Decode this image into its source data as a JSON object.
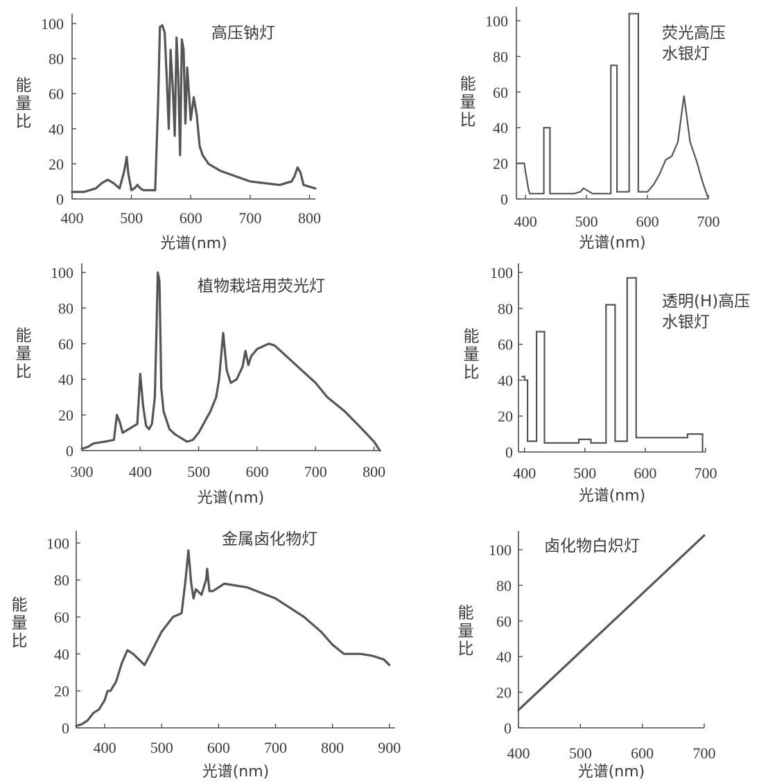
{
  "chart_data": [
    {
      "id": "hps",
      "type": "line",
      "title_lines": [
        "高压钠灯"
      ],
      "ylabel": "能量比",
      "xlabel": "光谱(nm)",
      "xlim": [
        400,
        810
      ],
      "ylim": [
        0,
        100
      ],
      "xticks": [
        400,
        500,
        600,
        700,
        800
      ],
      "yticks": [
        0,
        20,
        40,
        60,
        80,
        100
      ],
      "series": [
        {
          "x": [
            400,
            420,
            440,
            450,
            460,
            470,
            480,
            488,
            492,
            495,
            500,
            505,
            510,
            515,
            520,
            530,
            540,
            545,
            548,
            552,
            556,
            560,
            563,
            566,
            570,
            573,
            576,
            579,
            582,
            585,
            588,
            591,
            594,
            597,
            600,
            605,
            610,
            615,
            620,
            630,
            650,
            700,
            750,
            770,
            775,
            780,
            785,
            790,
            800,
            810
          ],
          "y": [
            4,
            4,
            6,
            9,
            11,
            9,
            6,
            16,
            24,
            14,
            5,
            6,
            8,
            6,
            5,
            5,
            5,
            55,
            98,
            99,
            95,
            65,
            40,
            85,
            62,
            36,
            92,
            70,
            25,
            91,
            85,
            43,
            75,
            60,
            45,
            58,
            48,
            30,
            25,
            20,
            16,
            10,
            8,
            10,
            13,
            18,
            15,
            8,
            7,
            6
          ]
        }
      ]
    },
    {
      "id": "mercury-fluor",
      "type": "line",
      "title_lines": [
        "荧光高压",
        "水银灯"
      ],
      "ylabel": "能量比",
      "xlabel": "光谱(nm)",
      "xlim": [
        385,
        700
      ],
      "ylim": [
        0,
        100
      ],
      "xticks": [
        400,
        500,
        600,
        700
      ],
      "yticks": [
        0,
        20,
        40,
        60,
        80,
        100
      ],
      "series": [
        {
          "x": [
            385,
            398,
            400,
            405,
            407,
            430,
            430,
            440,
            440,
            480,
            490,
            495,
            500,
            505,
            510,
            520,
            540,
            540,
            550,
            550,
            560,
            570,
            570,
            585,
            585,
            600,
            610,
            620,
            630,
            640,
            650,
            655,
            660,
            665,
            670,
            680,
            690,
            700
          ],
          "y": [
            20,
            20,
            15,
            5,
            3,
            3,
            40,
            40,
            3,
            3,
            4,
            6,
            5,
            4,
            3,
            3,
            3,
            75,
            75,
            4,
            4,
            4,
            104,
            104,
            4,
            4,
            8,
            14,
            22,
            24,
            32,
            45,
            58,
            45,
            32,
            22,
            10,
            0
          ]
        }
      ]
    },
    {
      "id": "plant-fluor",
      "type": "line",
      "title_lines": [
        "植物栽培用荧光灯"
      ],
      "ylabel": "能量比",
      "xlabel": "光谱(nm)",
      "xlim": [
        300,
        810
      ],
      "ylim": [
        0,
        100
      ],
      "xticks": [
        300,
        400,
        500,
        600,
        700,
        800
      ],
      "yticks": [
        0,
        20,
        40,
        60,
        80,
        100
      ],
      "series": [
        {
          "x": [
            300,
            310,
            320,
            340,
            355,
            360,
            365,
            370,
            380,
            395,
            400,
            405,
            410,
            415,
            420,
            425,
            428,
            430,
            433,
            436,
            440,
            450,
            460,
            480,
            490,
            500,
            520,
            530,
            535,
            542,
            548,
            555,
            565,
            575,
            580,
            585,
            590,
            600,
            620,
            630,
            650,
            680,
            700,
            720,
            750,
            780,
            800,
            810
          ],
          "y": [
            1,
            2,
            4,
            5,
            6,
            20,
            16,
            10,
            12,
            15,
            43,
            25,
            14,
            12,
            15,
            30,
            70,
            100,
            95,
            35,
            22,
            12,
            9,
            5,
            6,
            10,
            22,
            30,
            40,
            66,
            45,
            38,
            40,
            47,
            56,
            48,
            53,
            57,
            60,
            59,
            53,
            44,
            38,
            30,
            22,
            12,
            5,
            0
          ]
        }
      ]
    },
    {
      "id": "mercury-clear",
      "type": "line",
      "title_lines": [
        "透明(H)高压",
        "水银灯"
      ],
      "ylabel": "能量比",
      "xlabel": "光谱(nm)",
      "xlim": [
        390,
        700
      ],
      "ylim": [
        0,
        100
      ],
      "xticks": [
        400,
        500,
        600,
        700
      ],
      "yticks": [
        0,
        20,
        40,
        60,
        80,
        100
      ],
      "series": [
        {
          "x": [
            395,
            400,
            400,
            405,
            405,
            420,
            420,
            433,
            433,
            440,
            440,
            490,
            490,
            510,
            510,
            535,
            535,
            550,
            550,
            570,
            570,
            585,
            585,
            670,
            670,
            695,
            695
          ],
          "y": [
            42,
            42,
            40,
            40,
            6,
            6,
            67,
            67,
            5,
            5,
            5,
            5,
            7,
            7,
            5,
            5,
            82,
            82,
            6,
            6,
            97,
            97,
            8,
            8,
            10,
            10,
            0
          ]
        }
      ]
    },
    {
      "id": "metal-halide",
      "type": "line",
      "title_lines": [
        "金属卤化物灯"
      ],
      "ylabel": "能量比",
      "xlabel": "光谱(nm)",
      "xlim": [
        350,
        910
      ],
      "ylim": [
        0,
        105
      ],
      "xticks": [
        400,
        500,
        600,
        700,
        800,
        900
      ],
      "yticks": [
        0,
        20,
        40,
        60,
        80,
        100
      ],
      "series": [
        {
          "x": [
            350,
            360,
            370,
            380,
            390,
            400,
            405,
            410,
            420,
            430,
            440,
            450,
            460,
            470,
            480,
            500,
            520,
            535,
            542,
            547,
            552,
            556,
            560,
            570,
            578,
            580,
            584,
            590,
            610,
            650,
            700,
            750,
            780,
            800,
            820,
            850,
            870,
            890,
            900
          ],
          "y": [
            1,
            2,
            4,
            8,
            10,
            15,
            20,
            20,
            25,
            35,
            42,
            40,
            37,
            34,
            40,
            52,
            60,
            62,
            80,
            96,
            78,
            70,
            75,
            72,
            80,
            86,
            74,
            74,
            78,
            76,
            70,
            60,
            52,
            45,
            40,
            40,
            39,
            37,
            34
          ]
        }
      ]
    },
    {
      "id": "incandescent",
      "type": "line",
      "title_lines": [
        "卤化物白炽灯"
      ],
      "ylabel": "能量比",
      "xlabel": "光谱(nm)",
      "xlim": [
        400,
        700
      ],
      "ylim": [
        0,
        100
      ],
      "xticks": [
        400,
        500,
        600,
        700
      ],
      "yticks": [
        0,
        20,
        40,
        60,
        80,
        100
      ],
      "series": [
        {
          "x": [
            400,
            700
          ],
          "y": [
            10,
            108
          ]
        }
      ]
    }
  ]
}
